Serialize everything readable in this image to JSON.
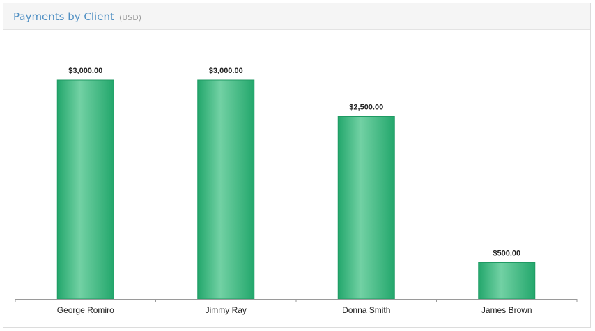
{
  "panel": {
    "title": "Payments by Client",
    "unit": "(USD)"
  },
  "colors": {
    "bar_edge": "#23a76c",
    "bar_mid": "#72d1a4",
    "bar_stroke": "#1f9a63",
    "axis": "#9a9a9a"
  },
  "chart_data": {
    "type": "bar",
    "title": "Payments by Client",
    "xlabel": "",
    "ylabel": "",
    "categories": [
      "George Romiro",
      "Jimmy Ray",
      "Donna Smith",
      "James Brown"
    ],
    "values": [
      3000,
      3000,
      2500,
      500
    ],
    "value_labels": [
      "$3,000.00",
      "$3,000.00",
      "$2,500.00",
      "$500.00"
    ],
    "ylim": [
      0,
      3400
    ],
    "grid": false,
    "legend": "none"
  }
}
